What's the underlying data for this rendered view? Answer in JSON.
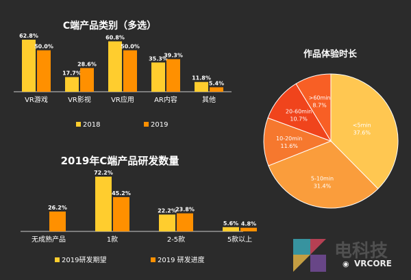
{
  "chart_data": [
    {
      "type": "bar",
      "title": "C端产品类别（多选）",
      "categories": [
        "VR游戏",
        "VR影视",
        "VR应用",
        "AR内容",
        "其他"
      ],
      "series": [
        {
          "name": "2018",
          "values": [
            62.8,
            17.7,
            60.8,
            35.3,
            11.8
          ],
          "labels": [
            "62.8%",
            "17.7%",
            "60.8%",
            "35.3%",
            "11.8%"
          ]
        },
        {
          "name": "2019",
          "values": [
            50.0,
            28.6,
            50.0,
            39.3,
            5.4
          ],
          "labels": [
            "50.0%",
            "28.6%",
            "50.0%",
            "39.3%",
            "5.4%"
          ]
        }
      ],
      "ylim": [
        0,
        65
      ]
    },
    {
      "type": "bar",
      "title": "2019年C端产品研发数量",
      "categories": [
        "无成熟产品",
        "1款",
        "2-5款",
        "5款以上"
      ],
      "series": [
        {
          "name": "2019研发期望",
          "values": [
            null,
            72.2,
            22.2,
            5.6
          ],
          "labels": [
            "",
            "72.2%",
            "22.2%",
            "5.6%"
          ]
        },
        {
          "name": "2019 研发进度",
          "values": [
            26.2,
            45.2,
            23.8,
            4.8
          ],
          "labels": [
            "26.2%",
            "45.2%",
            "23.8%",
            "4.8%"
          ]
        }
      ],
      "ylim": [
        0,
        75
      ]
    },
    {
      "type": "pie",
      "title": "作品体验时长",
      "slices": [
        {
          "label": "<5min",
          "value": 37.6,
          "text": "37.6%",
          "color": "#ffc751"
        },
        {
          "label": "5-10min",
          "value": 31.4,
          "text": "31.4%",
          "color": "#fa9d3c"
        },
        {
          "label": "10-20min",
          "value": 11.6,
          "text": "11.6%",
          "color": "#f6782e"
        },
        {
          "label": "20-60min",
          "value": 10.7,
          "text": "10.7%",
          "color": "#f0441c"
        },
        {
          "label": ">60min",
          "value": 8.7,
          "text": "8.7%",
          "color": "#f85f25"
        }
      ]
    }
  ],
  "colors": {
    "series_a": "#ffcd2e",
    "series_b": "#ff9000",
    "axis": "#cccccc"
  },
  "watermark": {
    "brand_cn": "电科技",
    "brand_en": "VRCORE"
  }
}
